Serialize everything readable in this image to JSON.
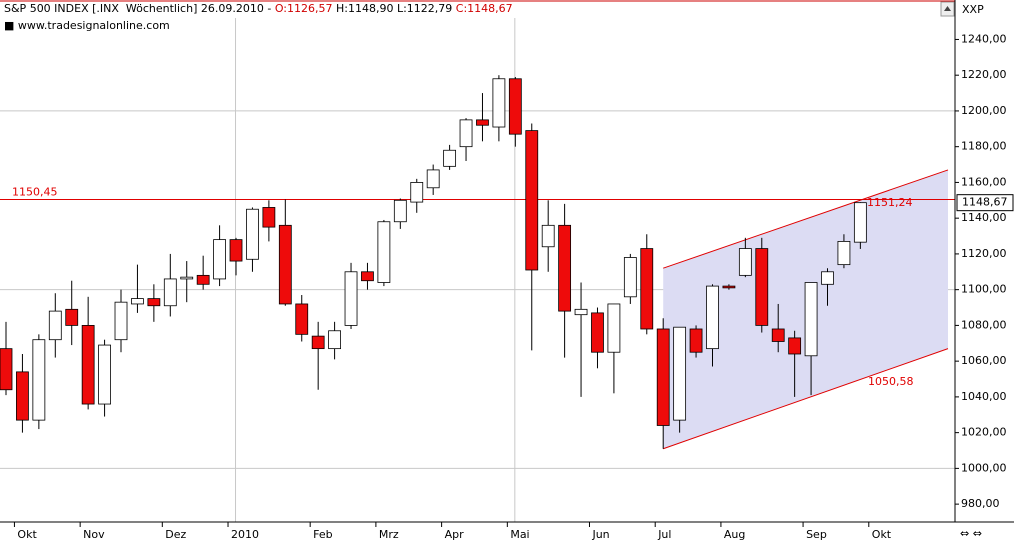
{
  "header": {
    "instrument": "S&P 500 INDEX [.INX  Wöchentlich]",
    "date": "26.09.2010",
    "separator": "-",
    "open": "O:1126,57",
    "high": "H:1148,90",
    "low": "L:1122,79",
    "close": "C:1148,67"
  },
  "source": "www.tradesignalonline.com",
  "axis_symbol": "XXP",
  "chart_data": {
    "type": "candlestick",
    "categories": [
      null,
      "Okt",
      null,
      null,
      null,
      "Nov",
      null,
      null,
      null,
      null,
      "Dez",
      null,
      null,
      null,
      "2010",
      null,
      null,
      null,
      null,
      "Feb",
      null,
      null,
      null,
      "Mrz",
      null,
      null,
      null,
      "Apr",
      null,
      null,
      null,
      "Mai",
      null,
      null,
      null,
      null,
      "Jun",
      null,
      null,
      null,
      "Jul",
      null,
      null,
      null,
      "Aug",
      null,
      null,
      null,
      null,
      "Sep",
      null,
      null,
      null,
      "Okt",
      null,
      null,
      null,
      null
    ],
    "open": [
      1067,
      1054,
      1027,
      1072,
      1089,
      1080,
      1036,
      1072,
      1092,
      1095,
      1091,
      1106,
      1108,
      1106,
      1128,
      1117,
      1146,
      1136,
      1092,
      1074,
      1067,
      1080,
      1110,
      1104,
      1138,
      1149,
      1157,
      1169,
      1180,
      1195,
      1191,
      1218,
      1189,
      1124,
      1136,
      1086,
      1087,
      1065,
      1096,
      1123,
      1078,
      1027,
      1078,
      1067,
      1102,
      1108,
      1123,
      1078,
      1073,
      1063,
      1103,
      1114,
      1126.57,
      null,
      null,
      null,
      null,
      null
    ],
    "high": [
      1082,
      1064,
      1075,
      1098,
      1105,
      1096,
      1072,
      1100,
      1114,
      1103,
      1120,
      1116,
      1119,
      1136,
      1129,
      1146,
      1150,
      1150.5,
      1097,
      1082,
      1082,
      1115,
      1115,
      1139,
      1151,
      1162,
      1170,
      1181,
      1196,
      1210,
      1220,
      1219,
      1193,
      1150,
      1148,
      1104,
      1090,
      1092,
      1120,
      1131,
      1084,
      1079,
      1080,
      1103,
      1103,
      1129,
      1129,
      1092,
      1077,
      1104,
      1112,
      1131,
      1148.9,
      null,
      null,
      null,
      null,
      null
    ],
    "low": [
      1041,
      1020,
      1022,
      1062,
      1069,
      1033,
      1029,
      1065,
      1087,
      1082,
      1085,
      1093,
      1100,
      1102,
      1108,
      1110,
      1127,
      1091,
      1071,
      1044,
      1061,
      1078,
      1100,
      1102,
      1134,
      1143,
      1153,
      1167,
      1172,
      1183,
      1183,
      1180,
      1066,
      1110,
      1062,
      1040,
      1056,
      1042,
      1092,
      1075,
      1011,
      1020,
      1062,
      1057,
      1100,
      1107,
      1076,
      1065,
      1040,
      1041,
      1091,
      1112,
      1122.79,
      null,
      null,
      null,
      null,
      null
    ],
    "close": [
      1044,
      1027,
      1072,
      1088,
      1080,
      1036,
      1069,
      1093,
      1095,
      1091,
      1106,
      1107,
      1103,
      1128,
      1116,
      1145,
      1135,
      1092,
      1075,
      1067,
      1077,
      1110,
      1105,
      1138,
      1150,
      1160,
      1167,
      1178,
      1195,
      1192,
      1218,
      1187,
      1111,
      1136,
      1088,
      1089,
      1065,
      1092,
      1118,
      1078,
      1024,
      1079,
      1065,
      1102,
      1101,
      1123,
      1080,
      1071,
      1064,
      1104,
      1110,
      1127,
      1148.67,
      null,
      null,
      null,
      null,
      null
    ],
    "up_color": "#ffffff",
    "down_color": "#ee0b0b",
    "ylim": [
      970,
      1252
    ],
    "yticks": [
      {
        "value": 980,
        "label": "980,00"
      },
      {
        "value": 1000,
        "label": "1000,00"
      },
      {
        "value": 1020,
        "label": "1020,00"
      },
      {
        "value": 1040,
        "label": "1040,00"
      },
      {
        "value": 1060,
        "label": "1060,00"
      },
      {
        "value": 1080,
        "label": "1080,00"
      },
      {
        "value": 1100,
        "label": "1100,00"
      },
      {
        "value": 1120,
        "label": "1120,00"
      },
      {
        "value": 1140,
        "label": "1140,00"
      },
      {
        "value": 1160,
        "label": "1160,00"
      },
      {
        "value": 1180,
        "label": "1180,00"
      },
      {
        "value": 1200,
        "label": "1200,00"
      },
      {
        "value": 1220,
        "label": "1220,00"
      },
      {
        "value": 1240,
        "label": "1240,00"
      }
    ],
    "hline": {
      "value": 1150.45,
      "label": "1150,45"
    },
    "channel": {
      "start": [
        1112,
        1011
      ],
      "end": [
        1167,
        1067
      ],
      "upper_label": {
        "value": 1151.24,
        "label": "1151,24"
      },
      "lower_label": {
        "value": 1050.58,
        "label": "1050,58"
      },
      "fill": "#dcdcf3",
      "line_color": "#e00000"
    },
    "last_price": {
      "value": 1148.67,
      "label": "1148,67"
    }
  }
}
